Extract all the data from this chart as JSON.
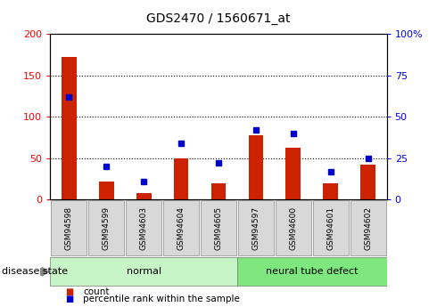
{
  "title": "GDS2470 / 1560671_at",
  "samples": [
    "GSM94598",
    "GSM94599",
    "GSM94603",
    "GSM94604",
    "GSM94605",
    "GSM94597",
    "GSM94600",
    "GSM94601",
    "GSM94602"
  ],
  "counts": [
    172,
    22,
    8,
    50,
    20,
    78,
    62,
    20,
    42
  ],
  "percentiles": [
    62,
    20,
    11,
    34,
    22,
    42,
    40,
    17,
    25
  ],
  "groups": [
    {
      "label": "normal",
      "start": 0,
      "end": 5,
      "color": "#c8f5c8"
    },
    {
      "label": "neural tube defect",
      "start": 5,
      "end": 9,
      "color": "#7ee87e"
    }
  ],
  "left_ylim": [
    0,
    200
  ],
  "right_ylim": [
    0,
    100
  ],
  "left_yticks": [
    0,
    50,
    100,
    150,
    200
  ],
  "right_yticks": [
    0,
    25,
    50,
    75,
    100
  ],
  "right_yticklabels": [
    "0",
    "25",
    "50",
    "75",
    "100%"
  ],
  "bar_color": "#cc2200",
  "dot_color": "#0000cc",
  "disease_state_label": "disease state",
  "legend_items": [
    {
      "label": "count",
      "color": "#cc2200"
    },
    {
      "label": "percentile rank within the sample",
      "color": "#0000cc"
    }
  ]
}
